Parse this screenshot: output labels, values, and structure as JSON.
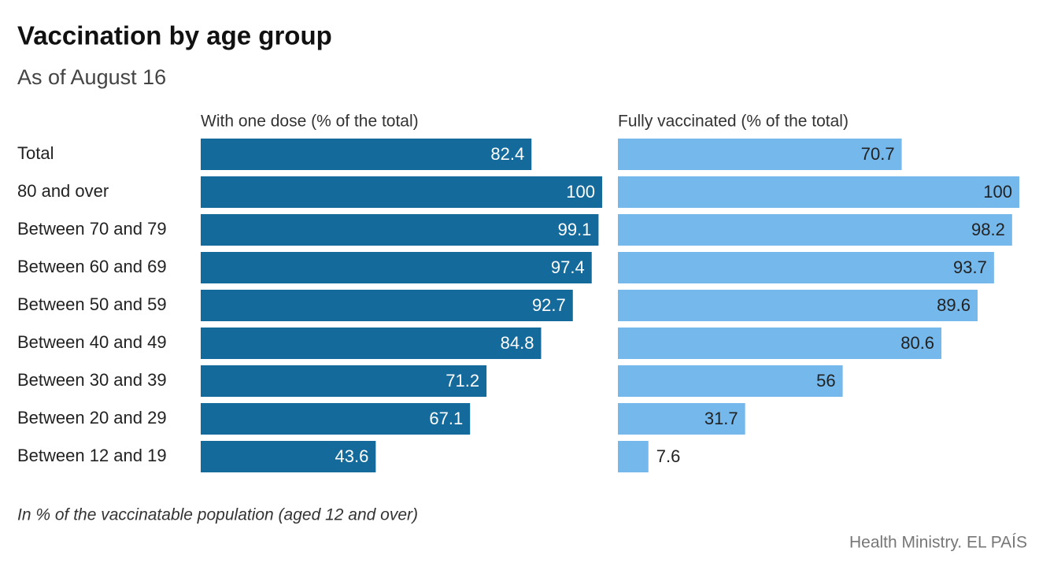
{
  "title": "Vaccination by age group",
  "subtitle": "As of August 16",
  "note": "In % of the vaccinatable population (aged 12 and over)",
  "source": "Health Ministry. EL PAÍS",
  "chart_data": [
    {
      "type": "bar",
      "title": "With one dose (% of the total)",
      "color": "#146a9b",
      "categories": [
        "Total",
        "80 and over",
        "Between 70 and 79",
        "Between 60 and 69",
        "Between 50 and 59",
        "Between 40 and 49",
        "Between 30 and 39",
        "Between 20 and 29",
        "Between 12 and 19"
      ],
      "values": [
        82.4,
        100,
        99.1,
        97.4,
        92.7,
        84.8,
        71.2,
        67.1,
        43.6
      ]
    },
    {
      "type": "bar",
      "title": "Fully vaccinated (% of the total)",
      "color": "#74b8ec",
      "values": [
        70.7,
        100,
        98.2,
        93.7,
        89.6,
        80.6,
        56,
        31.7,
        7.6
      ]
    }
  ]
}
